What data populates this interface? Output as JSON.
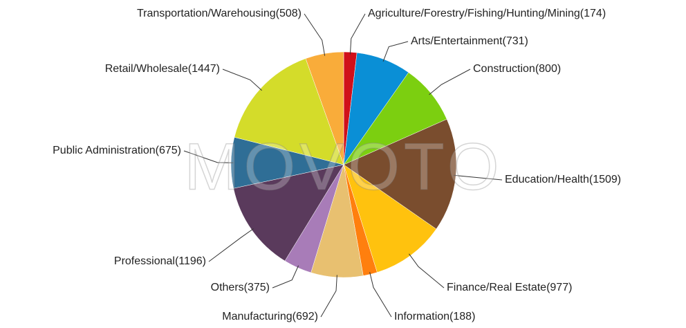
{
  "chart_data": {
    "type": "pie",
    "categories": [
      "Agriculture/Forestry/Fishing/Hunting/Mining",
      "Arts/Entertainment",
      "Construction",
      "Education/Health",
      "Finance/Real Estate",
      "Information",
      "Manufacturing",
      "Others",
      "Professional",
      "Public Administration",
      "Retail/Wholesale",
      "Transportation/Warehousing"
    ],
    "values": [
      174,
      731,
      800,
      1509,
      977,
      188,
      692,
      375,
      1196,
      675,
      1447,
      508
    ],
    "value_labels": [
      "(174)",
      "(731)",
      "(800)",
      "(1509)",
      "(977)",
      "(188)",
      "(692)",
      "(375)",
      "(1196)",
      "(675)",
      "(1447)",
      "(508)"
    ],
    "colors": [
      "#d0101a",
      "#0a8fd6",
      "#7ccf10",
      "#7a4d2e",
      "#ffc20e",
      "#ff7f0e",
      "#e8c070",
      "#a87cb8",
      "#5a3a5c",
      "#2f6e96",
      "#d4dc2a",
      "#f9ac3a"
    ],
    "watermark": "MOVOTO"
  }
}
